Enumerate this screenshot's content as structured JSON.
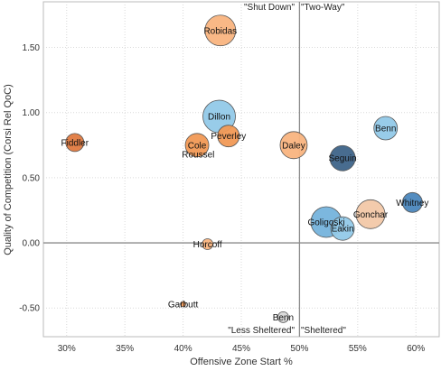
{
  "chart_data": {
    "type": "scatter",
    "xlabel": "Offensive Zone Start %",
    "ylabel": "Quality of Competition (Corsi Rel QoC)",
    "xlim": [
      28.0,
      62.0
    ],
    "ylim": [
      -0.72,
      1.85
    ],
    "x_ticks": [
      "30%",
      "35%",
      "40%",
      "45%",
      "50%",
      "55%",
      "60%"
    ],
    "x_tick_values": [
      30,
      35,
      40,
      45,
      50,
      55,
      60
    ],
    "y_ticks": [
      "1.50",
      "1.00",
      "0.50",
      "0.00",
      "-0.50"
    ],
    "y_tick_values": [
      1.5,
      1.0,
      0.5,
      0.0,
      -0.5
    ],
    "grid": true,
    "reference_lines": {
      "x": 50,
      "y": 0
    },
    "quadrant_labels": {
      "top_left": "\"Shut Down\"",
      "top_right": "\"Two-Way\"",
      "bottom_left": "\"Less Sheltered\"",
      "bottom_right": "\"Sheltered\""
    },
    "points": [
      {
        "label": "Robidas",
        "x": 43.2,
        "y": 1.63,
        "r": 17,
        "color": "#f9b47f"
      },
      {
        "label": "Dillon",
        "x": 43.1,
        "y": 0.97,
        "r": 18,
        "color": "#92c9e8"
      },
      {
        "label": "Peverley",
        "x": 43.9,
        "y": 0.82,
        "r": 12,
        "color": "#f19955"
      },
      {
        "label": "Cole",
        "x": 41.2,
        "y": 0.75,
        "r": 13,
        "color": "#f19955"
      },
      {
        "label": "Roussel",
        "x": 41.3,
        "y": 0.68,
        "r": 0,
        "color": "#f19955"
      },
      {
        "label": "Fiddler",
        "x": 30.7,
        "y": 0.77,
        "r": 10,
        "color": "#e07a40"
      },
      {
        "label": "Daley",
        "x": 49.5,
        "y": 0.75,
        "r": 15,
        "color": "#f9b47f"
      },
      {
        "label": "Seguin",
        "x": 53.7,
        "y": 0.65,
        "r": 14,
        "color": "#3e6489"
      },
      {
        "label": "Benn",
        "x": 57.4,
        "y": 0.88,
        "r": 13,
        "color": "#92c9e8"
      },
      {
        "label": "Whitney",
        "x": 59.7,
        "y": 0.31,
        "r": 11,
        "color": "#4b87bd"
      },
      {
        "label": "Gonchar",
        "x": 56.1,
        "y": 0.22,
        "r": 16,
        "color": "#f2c8a8"
      },
      {
        "label": "Goligoski",
        "x": 52.3,
        "y": 0.16,
        "r": 17,
        "color": "#75b3dc"
      },
      {
        "label": "Eakin",
        "x": 53.7,
        "y": 0.11,
        "r": 13,
        "color": "#92c9e8"
      },
      {
        "label": "Horcoff",
        "x": 42.1,
        "y": -0.01,
        "r": 6,
        "color": "#f9b47f"
      },
      {
        "label": "Garbutt",
        "x": 40.0,
        "y": -0.47,
        "r": 3,
        "color": "#f19955"
      },
      {
        "label": "Benn",
        "x": 48.6,
        "y": -0.57,
        "r": 6,
        "color": "#d8d8d8"
      }
    ]
  }
}
